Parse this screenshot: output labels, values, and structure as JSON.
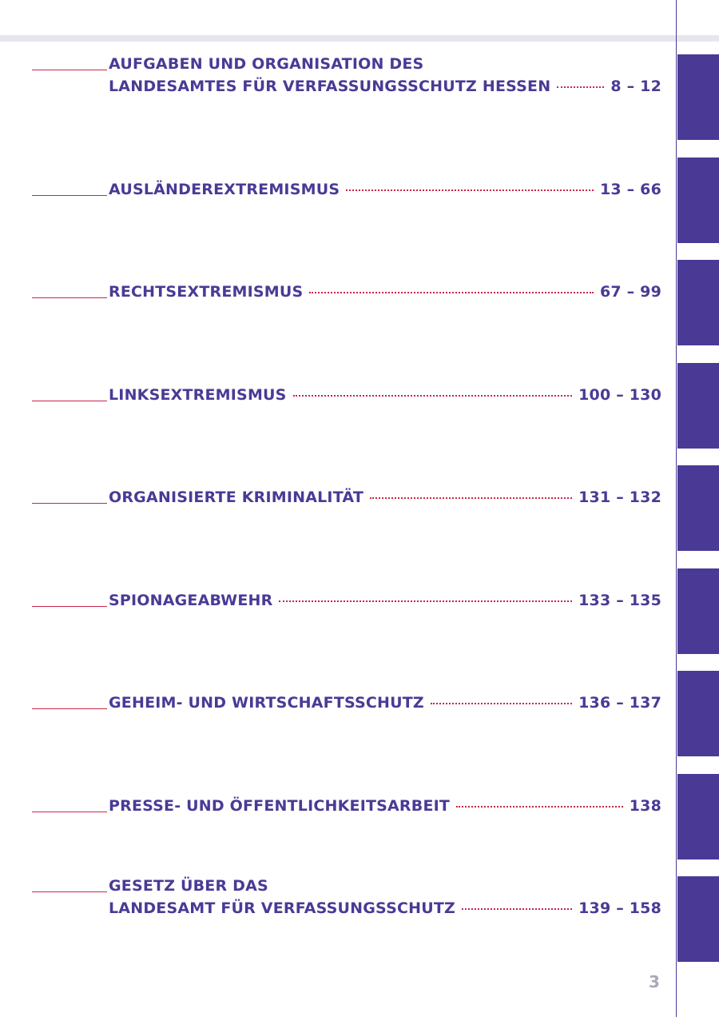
{
  "entries": [
    {
      "title": [
        "AUFGABEN UND ORGANISATION DES",
        "LANDESAMTES FÜR VERFASSUNGSSCHUTZ HESSEN"
      ],
      "pages": "8 – 12"
    },
    {
      "title": [
        "AUSLÄNDEREXTREMISMUS"
      ],
      "pages": "13 – 66"
    },
    {
      "title": [
        "RECHTSEXTREMISMUS"
      ],
      "pages": "67 – 99"
    },
    {
      "title": [
        "LINKSEXTREMISMUS"
      ],
      "pages": "100 – 130"
    },
    {
      "title": [
        "ORGANISIERTE KRIMINALITÄT"
      ],
      "pages": "131 – 132"
    },
    {
      "title": [
        "SPIONAGEABWEHR"
      ],
      "pages": "133 – 135"
    },
    {
      "title": [
        "GEHEIM- UND WIRTSCHAFTSSCHUTZ"
      ],
      "pages": "136 – 137"
    },
    {
      "title": [
        "PRESSE- UND ÖFFENTLICHKEITSARBEIT"
      ],
      "pages": "138"
    },
    {
      "title": [
        "GESETZ ÜBER DAS",
        "LANDESAMT FÜR VERFASSUNGSSCHUTZ"
      ],
      "pages": "139 – 158"
    }
  ],
  "page_number": "3"
}
